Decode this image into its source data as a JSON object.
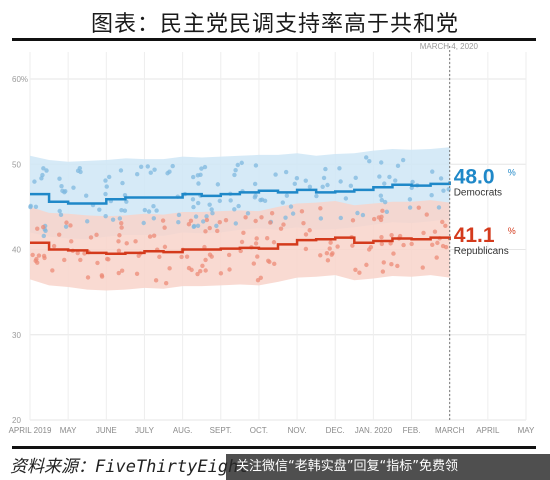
{
  "header": {
    "title": "图表：民主党民调支持率高于共和党"
  },
  "footer": {
    "source": "资料来源：FiveThirtyEight",
    "banner": "关注微信“老韩实盘”回复“指标”免费领"
  },
  "chart_data": {
    "type": "line",
    "ylim": [
      20,
      62
    ],
    "yticks": [
      20,
      30,
      40,
      50,
      60
    ],
    "ytick_labels": [
      "20",
      "30",
      "40",
      "50",
      "60%"
    ],
    "x_labels": [
      "APRIL 2019",
      "MAY",
      "JUNE",
      "JULY",
      "AUG.",
      "SEPT.",
      "OCT.",
      "NOV.",
      "DEC.",
      "JAN. 2020",
      "FEB.",
      "MARCH",
      "APRIL",
      "MAY"
    ],
    "marker_label": "MARCH 4, 2020",
    "grid": true,
    "colors": {
      "dem": "#1f88c8",
      "rep": "#d43a1c",
      "dem_band": "#cfe6f6",
      "rep_band": "#f8d3ca"
    },
    "series": [
      {
        "name": "Democrats",
        "final_value": "48.0",
        "months": [
          0,
          0.5,
          1,
          1.5,
          2,
          2.5,
          3,
          3.5,
          4,
          4.5,
          5,
          5.5,
          6,
          6.5,
          7,
          7.5,
          8,
          8.5,
          9,
          9.5,
          10,
          10.5,
          11
        ],
        "values": [
          46.5,
          45.6,
          45.4,
          45.4,
          45.9,
          46.1,
          46.1,
          46.1,
          46.5,
          46.3,
          46.5,
          46.7,
          46.9,
          46.7,
          47.0,
          46.7,
          46.8,
          47.0,
          47.3,
          47.6,
          47.5,
          47.7,
          48.0
        ],
        "upper": [
          51,
          50.5,
          50.3,
          50.4,
          50.5,
          50.7,
          50.6,
          50.6,
          50.9,
          50.8,
          50.9,
          51,
          51.1,
          51.1,
          51.3,
          51,
          51.2,
          51.3,
          51.6,
          51.8,
          51.7,
          51.8,
          52
        ],
        "lower": [
          42,
          41.5,
          41.3,
          41.2,
          41.5,
          41.7,
          41.7,
          41.6,
          42,
          41.9,
          42,
          42.3,
          42.5,
          42.3,
          42.6,
          42.3,
          42.4,
          42.6,
          42.9,
          43.2,
          43.1,
          43.3,
          43.6
        ]
      },
      {
        "name": "Republicans",
        "final_value": "41.1",
        "months": [
          0,
          0.5,
          1,
          1.5,
          2,
          2.5,
          3,
          3.5,
          4,
          4.5,
          5,
          5.5,
          6,
          6.5,
          7,
          7.5,
          8,
          8.5,
          9,
          9.5,
          10,
          10.5,
          11
        ],
        "values": [
          40.8,
          40.0,
          39.9,
          39.6,
          39.5,
          39.6,
          39.8,
          39.7,
          40.0,
          40.0,
          40.1,
          40.2,
          40.1,
          40.6,
          41.1,
          41.2,
          41.4,
          40.8,
          41.0,
          41.3,
          41.2,
          41.4,
          41.1
        ],
        "upper": [
          45,
          44.3,
          44.2,
          44,
          43.9,
          44,
          44.2,
          44.1,
          44.4,
          44.4,
          44.5,
          44.6,
          44.5,
          45,
          45.4,
          45.5,
          45.7,
          45.2,
          45.4,
          45.6,
          45.6,
          45.8,
          45.5
        ],
        "lower": [
          36.5,
          35.8,
          35.6,
          35.3,
          35.2,
          35.3,
          35.5,
          35.4,
          35.7,
          35.7,
          35.8,
          35.9,
          35.8,
          36.2,
          36.7,
          36.8,
          37,
          36.4,
          36.6,
          36.9,
          36.8,
          37,
          36.7
        ]
      }
    ]
  }
}
